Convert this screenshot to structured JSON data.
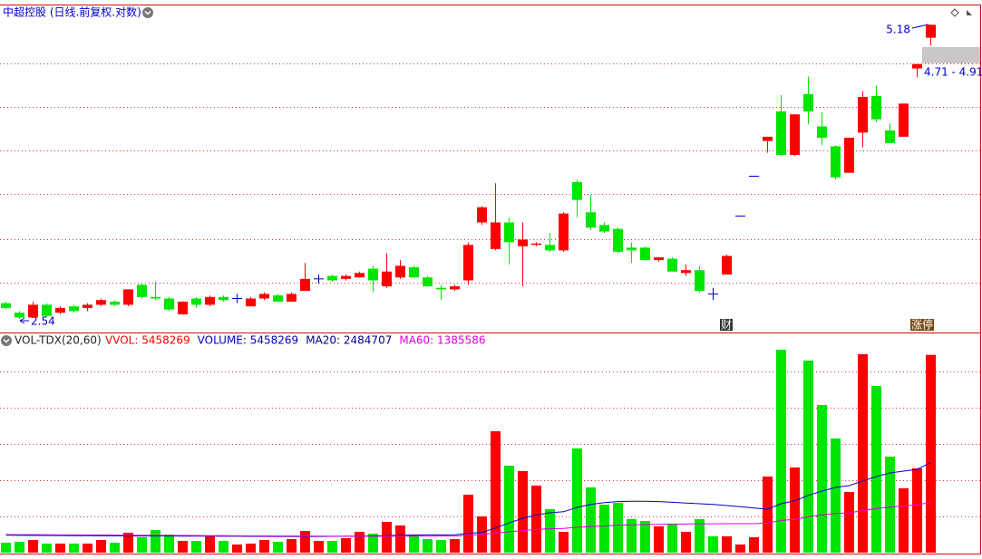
{
  "chart_data": [
    {
      "type": "candlestick",
      "title": "中超控股 (日线.前复权.对数)",
      "log": true,
      "ylim": [
        2.47,
        5.44
      ],
      "up_color": "#ff0000",
      "down_color": "#00e600",
      "flat_color": "#0000c8",
      "open": [
        2.64,
        2.58,
        2.55,
        2.63,
        2.58,
        2.62,
        2.61,
        2.63,
        2.65,
        2.63,
        2.76,
        2.68,
        2.67,
        2.57,
        2.67,
        2.63,
        2.68,
        2.67,
        2.62,
        2.67,
        2.69,
        2.65,
        2.72,
        2.8,
        2.82,
        2.8,
        2.81,
        2.87,
        2.75,
        2.81,
        2.88,
        2.81,
        2.74,
        2.73,
        2.79,
        3.21,
        3.01,
        3.21,
        3.03,
        3.04,
        3.04,
        3.0,
        3.54,
        3.29,
        3.19,
        3.16,
        3.02,
        3.02,
        2.93,
        2.94,
        2.84,
        2.86,
        2.7,
        2.83,
        3.26,
        3.59,
        3.91,
        4.2,
        3.78,
        4.38,
        4.05,
        3.86,
        3.62,
        3.99,
        4.36,
        4.01,
        3.95,
        4.66,
        5.02
      ],
      "high": [
        2.65,
        2.59,
        2.65,
        2.64,
        2.62,
        2.63,
        2.64,
        2.67,
        2.66,
        2.73,
        2.77,
        2.78,
        2.68,
        2.65,
        2.68,
        2.69,
        2.69,
        2.7,
        2.68,
        2.71,
        2.7,
        2.71,
        2.91,
        2.83,
        2.83,
        2.83,
        2.85,
        2.89,
        2.98,
        2.93,
        2.89,
        2.82,
        2.76,
        2.76,
        3.06,
        3.34,
        3.53,
        3.25,
        3.21,
        3.06,
        3.13,
        3.29,
        3.56,
        3.43,
        3.21,
        3.17,
        3.06,
        3.03,
        2.95,
        2.95,
        2.9,
        2.89,
        2.74,
        2.97,
        3.26,
        3.59,
        3.95,
        4.37,
        4.17,
        4.57,
        4.19,
        3.87,
        3.94,
        4.41,
        4.47,
        4.08,
        4.28,
        4.71,
        5.18
      ],
      "low": [
        2.6,
        2.54,
        2.55,
        2.55,
        2.57,
        2.58,
        2.59,
        2.62,
        2.62,
        2.62,
        2.67,
        2.66,
        2.59,
        2.57,
        2.61,
        2.62,
        2.65,
        2.64,
        2.62,
        2.66,
        2.65,
        2.65,
        2.72,
        2.77,
        2.78,
        2.79,
        2.81,
        2.71,
        2.74,
        2.8,
        2.81,
        2.75,
        2.66,
        2.72,
        2.76,
        3.19,
        3.0,
        2.9,
        2.75,
        3.03,
        2.99,
        2.99,
        3.25,
        3.15,
        3.13,
        2.98,
        2.91,
        2.93,
        2.92,
        2.85,
        2.82,
        2.71,
        2.66,
        2.83,
        3.26,
        3.59,
        3.8,
        3.77,
        3.77,
        4.07,
        3.87,
        3.56,
        3.62,
        3.85,
        4.09,
        3.89,
        3.95,
        4.56,
        4.93
      ],
      "close": [
        2.61,
        2.55,
        2.63,
        2.56,
        2.61,
        2.59,
        2.63,
        2.66,
        2.63,
        2.73,
        2.68,
        2.67,
        2.6,
        2.65,
        2.63,
        2.68,
        2.66,
        2.67,
        2.67,
        2.7,
        2.65,
        2.7,
        2.8,
        2.8,
        2.79,
        2.82,
        2.84,
        2.79,
        2.85,
        2.89,
        2.81,
        2.75,
        2.73,
        2.75,
        3.04,
        3.33,
        3.21,
        3.06,
        3.08,
        3.05,
        3.0,
        3.28,
        3.39,
        3.17,
        3.14,
        2.99,
        3.0,
        2.93,
        2.95,
        2.85,
        2.86,
        2.72,
        2.7,
        2.96,
        3.26,
        3.59,
        3.95,
        3.78,
        4.17,
        4.2,
        3.94,
        3.58,
        3.94,
        4.35,
        4.12,
        3.89,
        4.28,
        4.71,
        5.18
      ],
      "annotations": [
        "5.18",
        "2.54",
        "4.71 - 4.91"
      ],
      "markers": [
        "财",
        "涨停"
      ]
    },
    {
      "type": "bar",
      "title": "VOL-TDX(20,60)",
      "ylim": [
        0,
        6000000
      ],
      "legend": [
        {
          "text": "VVOL: 5458269",
          "color": "#ff0000"
        },
        {
          "text": "VOLUME: 5458269",
          "color": "#0000c8"
        },
        {
          "text": "MA20: 2484707",
          "color": "#00008b"
        },
        {
          "text": "MA60: 1385586",
          "color": "#e000e0"
        }
      ],
      "series": [
        {
          "values": [
            275000,
            300000,
            350000,
            250000,
            250000,
            250000,
            250000,
            350000,
            275000,
            550000,
            425000,
            625000,
            500000,
            325000,
            325000,
            475000,
            325000,
            225000,
            250000,
            350000,
            300000,
            375000,
            600000,
            325000,
            325000,
            400000,
            575000,
            525000,
            850000,
            750000,
            500000,
            375000,
            350000,
            375000,
            1600000,
            1000000,
            3350000,
            2400000,
            2250000,
            1850000,
            1200000,
            575000,
            2875000,
            1800000,
            1325000,
            1375000,
            925000,
            875000,
            725000,
            800000,
            575000,
            925000,
            450000,
            450000,
            225000,
            425000,
            2100000,
            5600000,
            2350000,
            5300000,
            4075000,
            3150000,
            1675000,
            5475000,
            4600000,
            2650000,
            1775000,
            2325000,
            5458269
          ]
        },
        {
          "color": "#0000c8",
          "values": [
            480000,
            478000,
            476000,
            474000,
            472000,
            470000,
            468000,
            466000,
            464000,
            462000,
            460000,
            458000,
            458000,
            456000,
            455000,
            455000,
            454000,
            452000,
            450000,
            450000,
            448000,
            446000,
            445000,
            447000,
            450000,
            452000,
            456000,
            462000,
            470000,
            480000,
            485000,
            490000,
            492000,
            495000,
            530000,
            560000,
            680000,
            820000,
            950000,
            1040000,
            1100000,
            1130000,
            1250000,
            1330000,
            1380000,
            1410000,
            1420000,
            1420000,
            1410000,
            1390000,
            1370000,
            1350000,
            1330000,
            1300000,
            1270000,
            1230000,
            1200000,
            1350000,
            1430000,
            1580000,
            1700000,
            1800000,
            1850000,
            1980000,
            2100000,
            2200000,
            2250000,
            2300000,
            2484707
          ]
        },
        {
          "color": "#e000e0",
          "values": [
            500000,
            498000,
            496000,
            494000,
            492000,
            490000,
            488000,
            486000,
            484000,
            482000,
            480000,
            478000,
            476000,
            474000,
            472000,
            470000,
            468000,
            466000,
            464000,
            462000,
            460000,
            458000,
            456000,
            455000,
            454000,
            453000,
            452000,
            452000,
            453000,
            455000,
            456000,
            457000,
            458000,
            460000,
            480000,
            500000,
            540000,
            575000,
            610000,
            640000,
            660000,
            670000,
            700000,
            720000,
            740000,
            755000,
            765000,
            775000,
            782000,
            788000,
            792000,
            795000,
            798000,
            800000,
            800000,
            800000,
            820000,
            890000,
            920000,
            990000,
            1040000,
            1080000,
            1100000,
            1160000,
            1220000,
            1260000,
            1290000,
            1320000,
            1385586
          ]
        }
      ]
    }
  ]
}
